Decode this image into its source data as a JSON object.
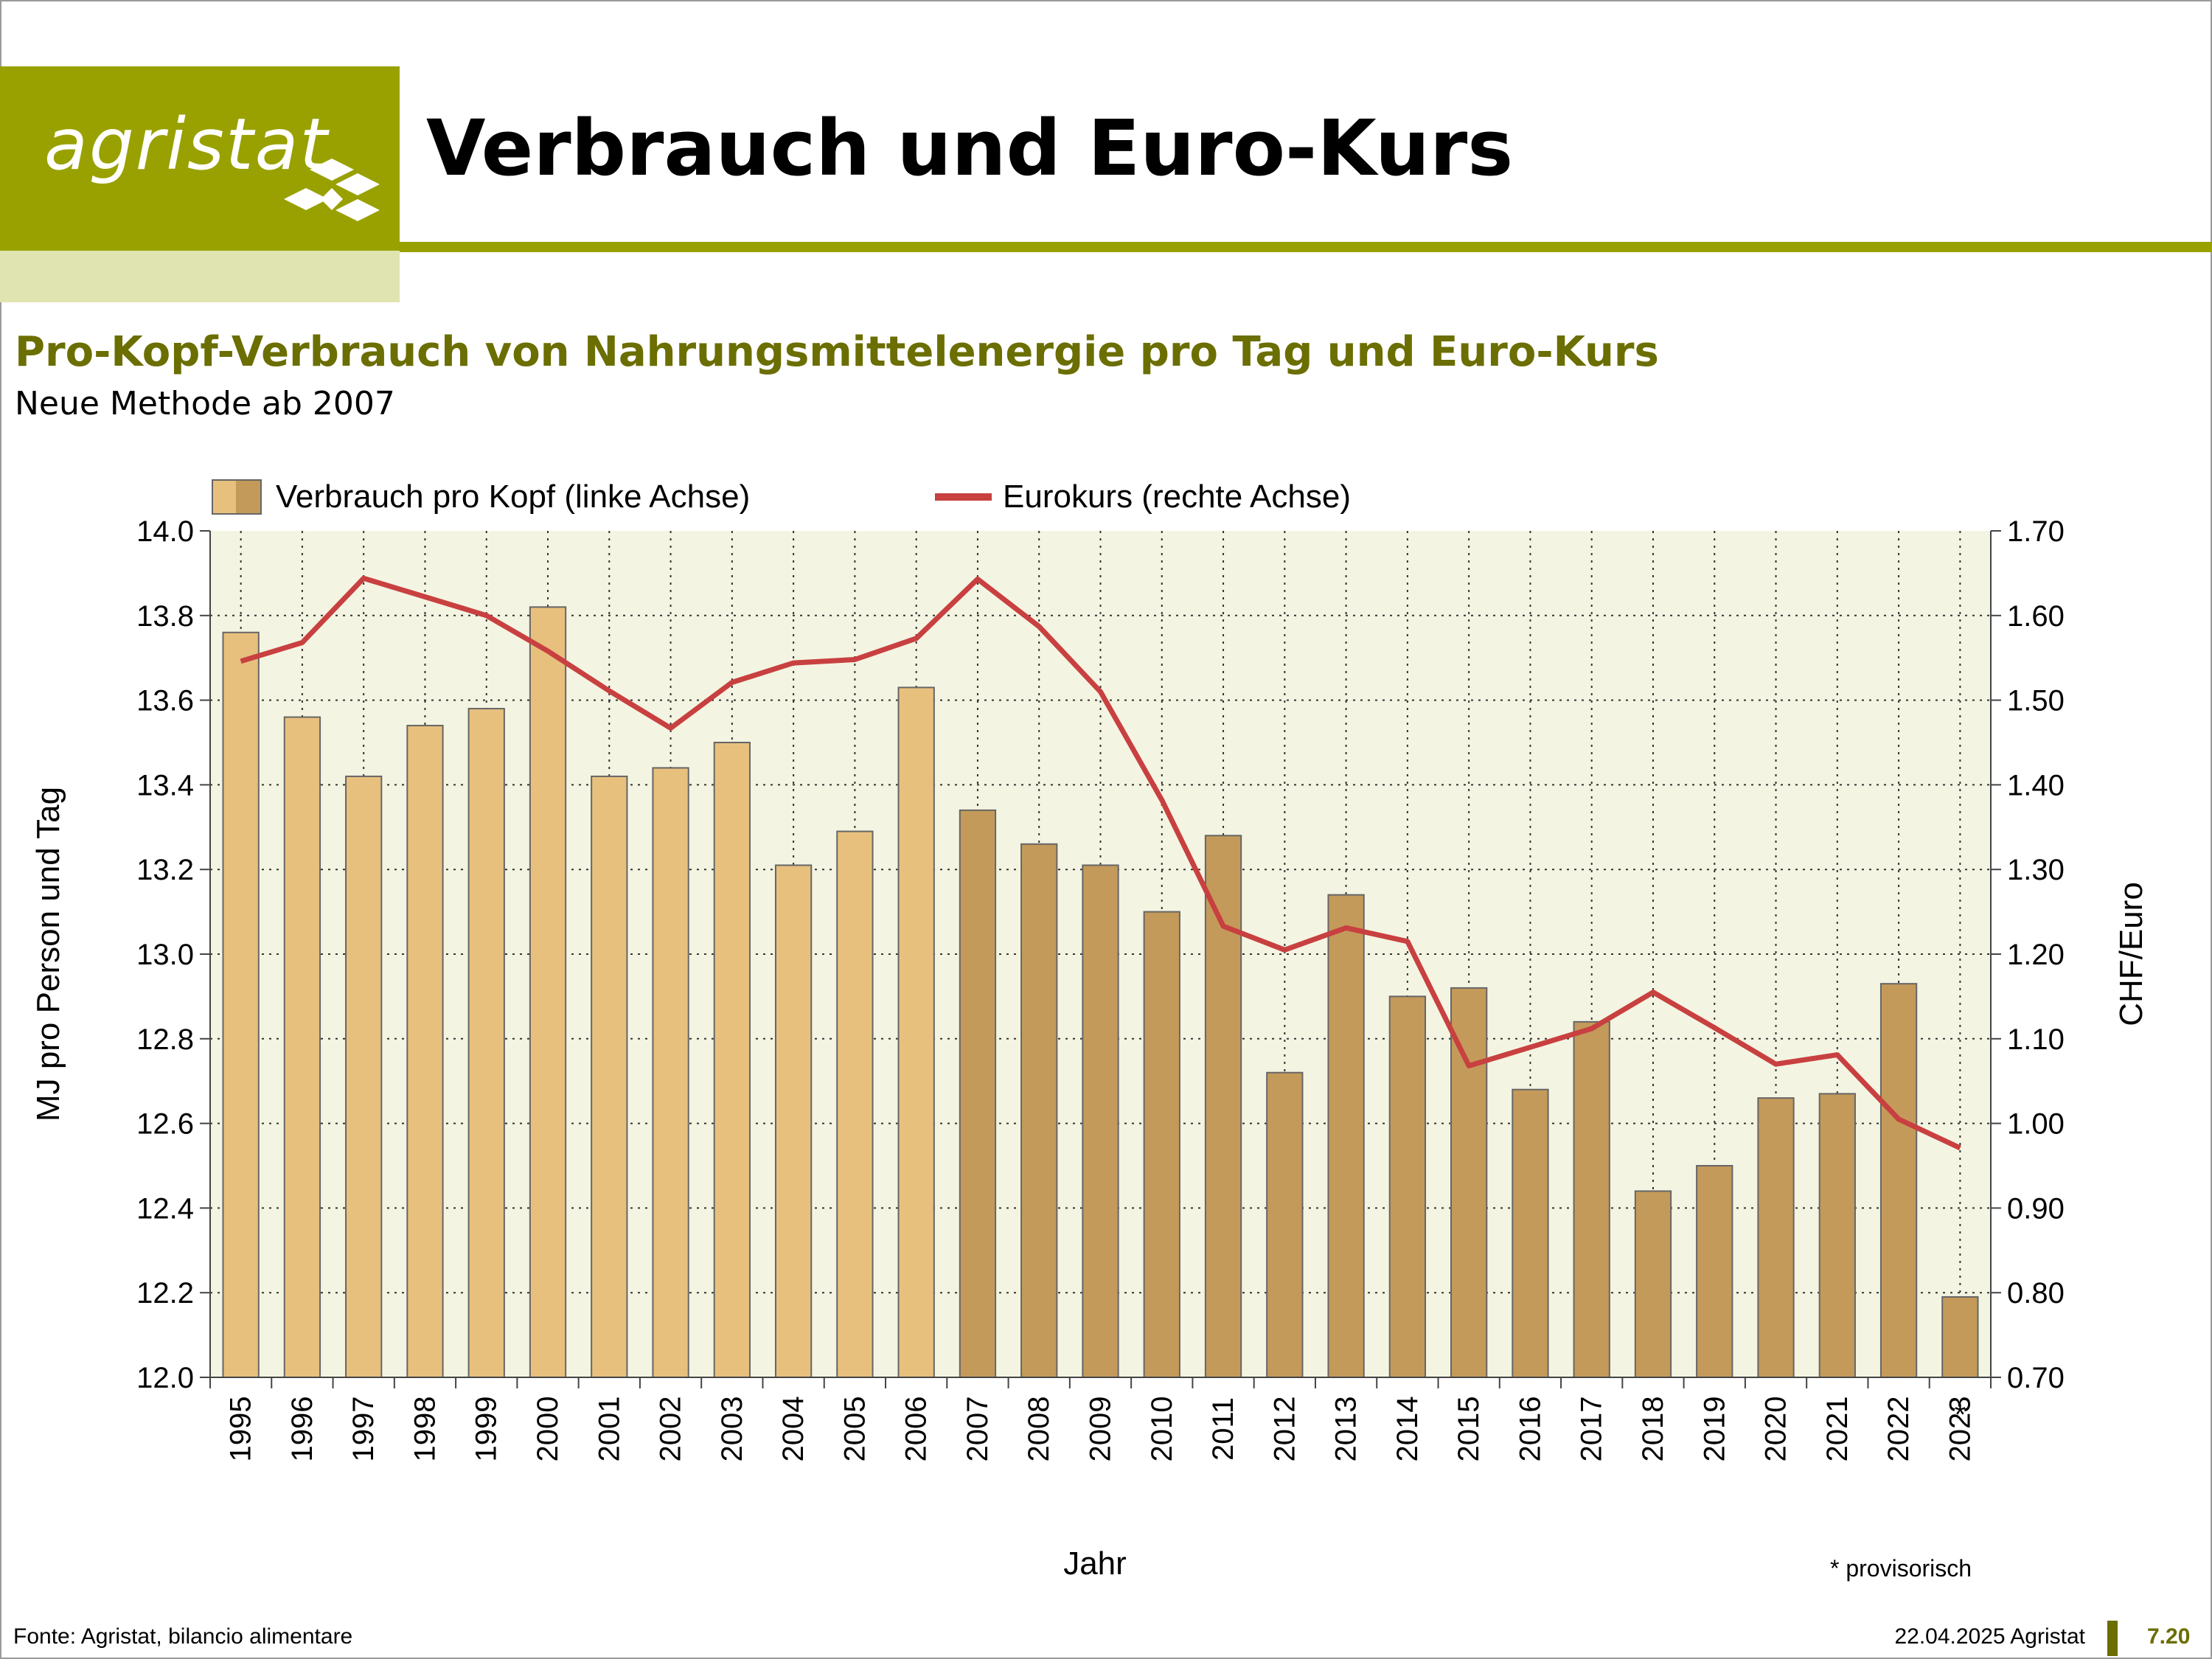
{
  "brand": {
    "logo_text": "agristat",
    "accent": "#99a100",
    "accent_light": "#e0e4b0",
    "text_green": "#6b6e00"
  },
  "header": {
    "title": "Verbrauch und Euro-Kurs",
    "subtitle": "Pro-Kopf-Verbrauch von Nahrungsmittelenergie pro Tag und Euro-Kurs",
    "subsubtitle": "Neue Methode ab 2007"
  },
  "footer": {
    "source": "Fonte: Agristat, bilancio alimentare",
    "date": "22.04.2025 Agristat",
    "page": "7.20"
  },
  "chart_data": {
    "type": "bar",
    "categories": [
      "1995",
      "1996",
      "1997",
      "1998",
      "1999",
      "2000",
      "2001",
      "2002",
      "2003",
      "2004",
      "2005",
      "2006",
      "2007",
      "2008",
      "2009",
      "2010",
      "2011",
      "2012",
      "2013",
      "2014",
      "2015",
      "2016",
      "2017",
      "2018",
      "2019",
      "2020",
      "2021",
      "2022",
      "2023"
    ],
    "category_markers": {
      "2023": "*"
    },
    "series": [
      {
        "name": "Verbrauch pro Kopf (linke Achse)",
        "type": "bar",
        "axis": "left",
        "values": [
          13.76,
          13.56,
          13.42,
          13.54,
          13.58,
          13.82,
          13.42,
          13.44,
          13.5,
          13.21,
          13.29,
          13.63,
          13.34,
          13.26,
          13.21,
          13.1,
          13.28,
          12.72,
          13.14,
          12.9,
          12.92,
          12.68,
          12.84,
          12.44,
          12.5,
          12.66,
          12.67,
          12.93,
          12.19
        ],
        "color_old_method": "#e8c07e",
        "color_new_method": "#c49a5a",
        "new_method_from": "2007"
      },
      {
        "name": "Eurokurs (rechte Achse)",
        "type": "line",
        "axis": "right",
        "values": [
          1.546,
          1.568,
          1.644,
          1.622,
          1.6,
          1.558,
          1.511,
          1.467,
          1.521,
          1.544,
          1.548,
          1.573,
          1.643,
          1.587,
          1.51,
          1.382,
          1.233,
          1.205,
          1.231,
          1.215,
          1.068,
          1.09,
          1.112,
          1.155,
          1.113,
          1.07,
          1.081,
          1.005,
          0.971
        ],
        "color": "#c84040"
      }
    ],
    "xlabel": "Jahr",
    "ylabel": "MJ pro Person und Tag",
    "ylabel_right": "CHF/Euro",
    "ylim": [
      12.0,
      14.0
    ],
    "yticks": [
      "12.0",
      "12.2",
      "12.4",
      "12.6",
      "12.8",
      "13.0",
      "13.2",
      "13.4",
      "13.6",
      "13.8",
      "14.0"
    ],
    "ylim_right": [
      0.7,
      1.7
    ],
    "yticks_right": [
      "0.70",
      "0.80",
      "0.90",
      "1.00",
      "1.10",
      "1.20",
      "1.30",
      "1.40",
      "1.50",
      "1.60",
      "1.70"
    ],
    "grid": true,
    "legend": "top",
    "note": "* provisorisch",
    "plot_background": "#f4f4e2"
  }
}
